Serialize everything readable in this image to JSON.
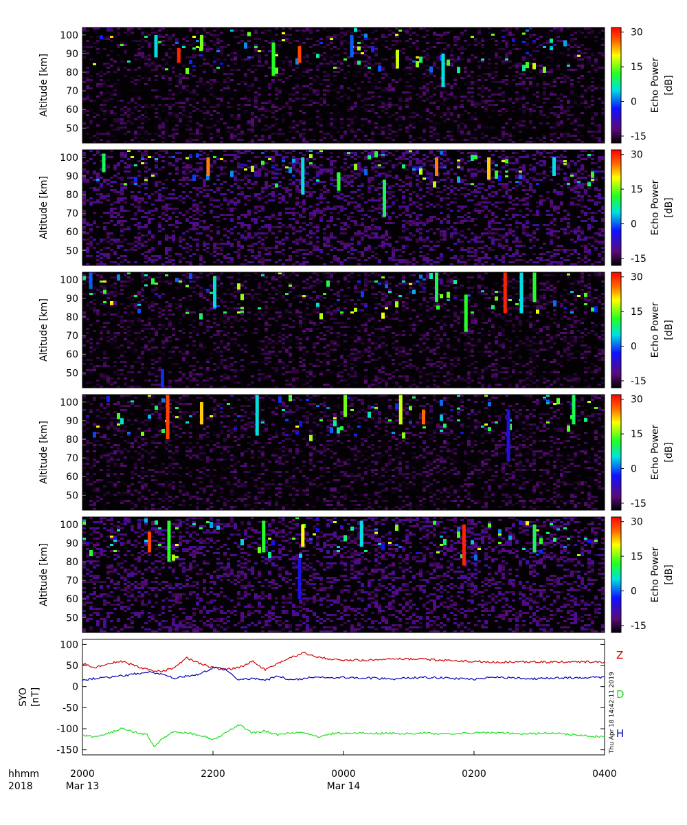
{
  "chart_data": [
    {
      "type": "heatmap",
      "panel": 1,
      "ylabel": "Altitude [km]",
      "yticks": [
        50,
        60,
        70,
        80,
        90,
        100
      ],
      "ylim": [
        42,
        104
      ],
      "colorbar": {
        "label": "Echo Power [dB]",
        "ticks": [
          -15,
          0,
          15,
          30
        ],
        "range": [
          -18,
          32
        ]
      },
      "events": [
        {
          "t": 1.1,
          "alt": [
            88,
            100
          ],
          "db": 5
        },
        {
          "t": 1.45,
          "alt": [
            85,
            93
          ],
          "db": 30
        },
        {
          "t": 1.8,
          "alt": [
            92,
            100
          ],
          "db": 15
        },
        {
          "t": 2.9,
          "alt": [
            78,
            96
          ],
          "db": 12
        },
        {
          "t": 3.3,
          "alt": [
            85,
            94
          ],
          "db": 28
        },
        {
          "t": 4.1,
          "alt": [
            88,
            100
          ],
          "db": 0
        },
        {
          "t": 5.5,
          "alt": [
            72,
            90
          ],
          "db": 5
        },
        {
          "t": 4.8,
          "alt": [
            82,
            92
          ],
          "db": 18
        }
      ],
      "noise": {
        "low_db": -15,
        "high_band": [
          82,
          104
        ],
        "high_prob": 0.05
      }
    },
    {
      "type": "heatmap",
      "panel": 2,
      "ylabel": "Altitude [km]",
      "yticks": [
        50,
        60,
        70,
        80,
        90,
        100
      ],
      "ylim": [
        42,
        104
      ],
      "colorbar": {
        "label": "Echo Power [dB]",
        "ticks": [
          -15,
          0,
          15,
          30
        ],
        "range": [
          -18,
          32
        ]
      },
      "events": [
        {
          "t": 0.3,
          "alt": [
            92,
            102
          ],
          "db": 10
        },
        {
          "t": 1.9,
          "alt": [
            90,
            100
          ],
          "db": 25
        },
        {
          "t": 3.35,
          "alt": [
            80,
            100
          ],
          "db": 5
        },
        {
          "t": 3.9,
          "alt": [
            82,
            92
          ],
          "db": 12
        },
        {
          "t": 4.6,
          "alt": [
            68,
            88
          ],
          "db": 10
        },
        {
          "t": 5.4,
          "alt": [
            90,
            100
          ],
          "db": 25
        },
        {
          "t": 6.2,
          "alt": [
            88,
            100
          ],
          "db": 22
        },
        {
          "t": 7.2,
          "alt": [
            90,
            100
          ],
          "db": 5
        }
      ],
      "noise": {
        "low_db": -12,
        "high_band": [
          85,
          104
        ],
        "high_prob": 0.05
      }
    },
    {
      "type": "heatmap",
      "panel": 3,
      "ylabel": "Altitude [km]",
      "yticks": [
        50,
        60,
        70,
        80,
        90,
        100
      ],
      "ylim": [
        42,
        104
      ],
      "colorbar": {
        "label": "Echo Power [dB]",
        "ticks": [
          -15,
          0,
          15,
          30
        ],
        "range": [
          -18,
          32
        ]
      },
      "events": [
        {
          "t": 0.1,
          "alt": [
            95,
            104
          ],
          "db": 0
        },
        {
          "t": 1.2,
          "alt": [
            42,
            52
          ],
          "db": -2
        },
        {
          "t": 2.0,
          "alt": [
            85,
            100
          ],
          "db": 5
        },
        {
          "t": 5.4,
          "alt": [
            88,
            104
          ],
          "db": 10
        },
        {
          "t": 5.85,
          "alt": [
            72,
            92
          ],
          "db": 12
        },
        {
          "t": 6.45,
          "alt": [
            82,
            104
          ],
          "db": 30
        },
        {
          "t": 6.7,
          "alt": [
            82,
            104
          ],
          "db": 5
        },
        {
          "t": 6.9,
          "alt": [
            88,
            104
          ],
          "db": 12
        }
      ],
      "noise": {
        "low_db": -15,
        "high_band": [
          82,
          104
        ],
        "high_prob": 0.05
      }
    },
    {
      "type": "heatmap",
      "panel": 4,
      "ylabel": "Altitude [km]",
      "yticks": [
        50,
        60,
        70,
        80,
        90,
        100
      ],
      "ylim": [
        42,
        104
      ],
      "colorbar": {
        "label": "Echo Power [dB]",
        "ticks": [
          -15,
          0,
          15,
          30
        ],
        "range": [
          -18,
          32
        ]
      },
      "events": [
        {
          "t": 1.28,
          "alt": [
            80,
            104
          ],
          "db": 28
        },
        {
          "t": 1.8,
          "alt": [
            88,
            100
          ],
          "db": 22
        },
        {
          "t": 2.65,
          "alt": [
            82,
            104
          ],
          "db": 5
        },
        {
          "t": 4.0,
          "alt": [
            92,
            104
          ],
          "db": 15
        },
        {
          "t": 4.85,
          "alt": [
            88,
            104
          ],
          "db": 18
        },
        {
          "t": 5.2,
          "alt": [
            88,
            96
          ],
          "db": 26
        },
        {
          "t": 6.5,
          "alt": [
            68,
            96
          ],
          "db": -5
        },
        {
          "t": 7.5,
          "alt": [
            88,
            104
          ],
          "db": 10
        }
      ],
      "noise": {
        "low_db": -15,
        "high_band": [
          82,
          104
        ],
        "high_prob": 0.05
      }
    },
    {
      "type": "heatmap",
      "panel": 5,
      "ylabel": "Altitude [km]",
      "yticks": [
        50,
        60,
        70,
        80,
        90,
        100
      ],
      "ylim": [
        42,
        104
      ],
      "colorbar": {
        "label": "Echo Power [dB]",
        "ticks": [
          -15,
          0,
          15,
          30
        ],
        "range": [
          -18,
          32
        ]
      },
      "events": [
        {
          "t": 1.0,
          "alt": [
            85,
            96
          ],
          "db": 28
        },
        {
          "t": 1.3,
          "alt": [
            80,
            102
          ],
          "db": 12
        },
        {
          "t": 2.75,
          "alt": [
            85,
            102
          ],
          "db": 12
        },
        {
          "t": 3.3,
          "alt": [
            60,
            82
          ],
          "db": -5
        },
        {
          "t": 3.35,
          "alt": [
            88,
            100
          ],
          "db": 20
        },
        {
          "t": 4.25,
          "alt": [
            88,
            102
          ],
          "db": 5
        },
        {
          "t": 5.82,
          "alt": [
            78,
            100
          ],
          "db": 30
        },
        {
          "t": 6.9,
          "alt": [
            85,
            100
          ],
          "db": 10
        }
      ],
      "noise": {
        "low_db": -12,
        "high_band": [
          82,
          104
        ],
        "high_prob": 0.05
      }
    },
    {
      "type": "line",
      "panel": 6,
      "ylabel": "SYO [nT]",
      "ylim": [
        -162,
        112
      ],
      "yticks": [
        100,
        50,
        0,
        -50,
        -100,
        -150
      ],
      "series": [
        {
          "name": "Z",
          "color": "#cc0000",
          "t": [
            0,
            0.2,
            0.4,
            0.6,
            0.8,
            1.0,
            1.2,
            1.4,
            1.6,
            1.8,
            2.0,
            2.2,
            2.4,
            2.6,
            2.8,
            3.0,
            3.2,
            3.4,
            3.6,
            3.8,
            4.0,
            4.4,
            4.8,
            5.2,
            5.6,
            6.0,
            6.4,
            6.8,
            7.2,
            7.6,
            8.0
          ],
          "values": [
            55,
            45,
            55,
            60,
            50,
            40,
            35,
            45,
            68,
            55,
            45,
            40,
            45,
            60,
            40,
            55,
            70,
            80,
            70,
            65,
            62,
            63,
            66,
            65,
            62,
            60,
            58,
            59,
            58,
            59,
            58
          ]
        },
        {
          "name": "D",
          "color": "#22dd22",
          "t": [
            0,
            0.2,
            0.4,
            0.6,
            0.8,
            1.0,
            1.1,
            1.2,
            1.4,
            1.6,
            1.8,
            2.0,
            2.2,
            2.4,
            2.6,
            2.8,
            3.0,
            3.2,
            3.4,
            3.6,
            3.8,
            4.0,
            4.4,
            4.8,
            5.2,
            5.6,
            6.0,
            6.4,
            6.8,
            7.2,
            7.6,
            8.0
          ],
          "values": [
            -115,
            -120,
            -110,
            -100,
            -108,
            -115,
            -145,
            -125,
            -108,
            -110,
            -115,
            -125,
            -110,
            -90,
            -110,
            -105,
            -115,
            -110,
            -108,
            -120,
            -112,
            -110,
            -110,
            -112,
            -110,
            -112,
            -110,
            -110,
            -112,
            -110,
            -115,
            -120
          ]
        },
        {
          "name": "H",
          "color": "#0000bb",
          "t": [
            0,
            0.2,
            0.4,
            0.6,
            0.8,
            1.0,
            1.2,
            1.4,
            1.6,
            1.8,
            2.0,
            2.2,
            2.4,
            2.6,
            2.8,
            3.0,
            3.2,
            3.4,
            3.6,
            3.8,
            4.0,
            4.4,
            4.8,
            5.2,
            5.6,
            6.0,
            6.4,
            6.8,
            7.2,
            7.6,
            8.0
          ],
          "values": [
            15,
            20,
            22,
            25,
            30,
            35,
            30,
            20,
            25,
            30,
            45,
            40,
            15,
            20,
            15,
            25,
            15,
            20,
            22,
            20,
            22,
            20,
            18,
            22,
            20,
            18,
            22,
            18,
            20,
            21,
            22
          ]
        }
      ]
    }
  ],
  "axis_x": {
    "ticks": [
      {
        "t": 0,
        "time": "2000",
        "date": "Mar 13"
      },
      {
        "t": 2,
        "time": "2200",
        "date": ""
      },
      {
        "t": 4,
        "time": "0000",
        "date": "Mar 14"
      },
      {
        "t": 6,
        "time": "0200",
        "date": ""
      },
      {
        "t": 8,
        "time": "0400",
        "date": ""
      }
    ],
    "range_hours": [
      0,
      8
    ],
    "label_line1": "hhmm",
    "label_line2": "2018"
  },
  "timestamp": "Thu Apr 18 14:42:11 2019"
}
